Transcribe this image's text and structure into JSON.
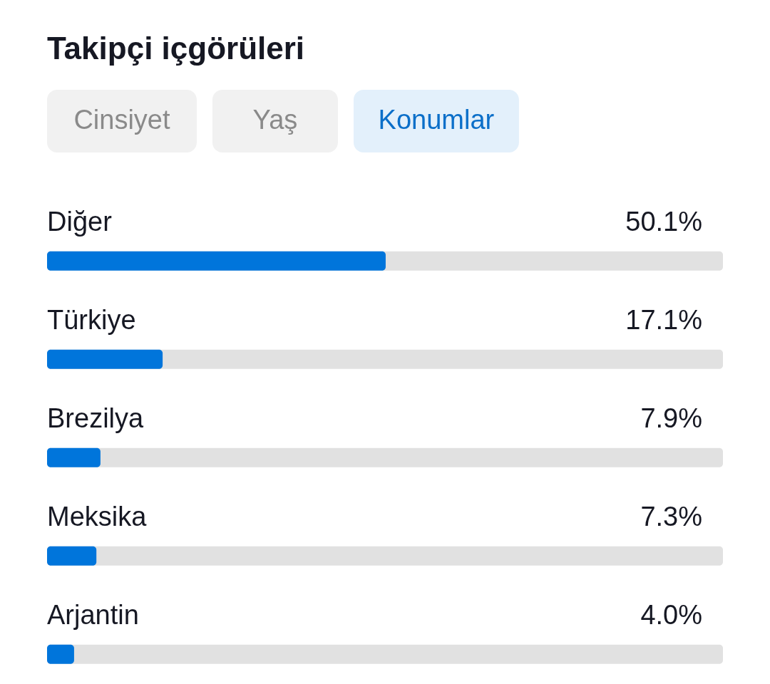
{
  "chart_data": {
    "type": "bar",
    "orientation": "horizontal",
    "title": "Takipçi içgörüleri",
    "annotations": [
      "Cinsiyet",
      "Yaş",
      "Konumlar"
    ],
    "categories": [
      "Diğer",
      "Türkiye",
      "Brezilya",
      "Meksika",
      "Arjantin"
    ],
    "values": [
      50.1,
      17.1,
      7.9,
      7.3,
      4.0
    ],
    "value_labels": [
      "50.1%",
      "17.1%",
      "7.9%",
      "7.3%",
      "4.0%"
    ],
    "color": "#0075db",
    "xlim": [
      0,
      100
    ],
    "tick_labels": "y"
  }
}
